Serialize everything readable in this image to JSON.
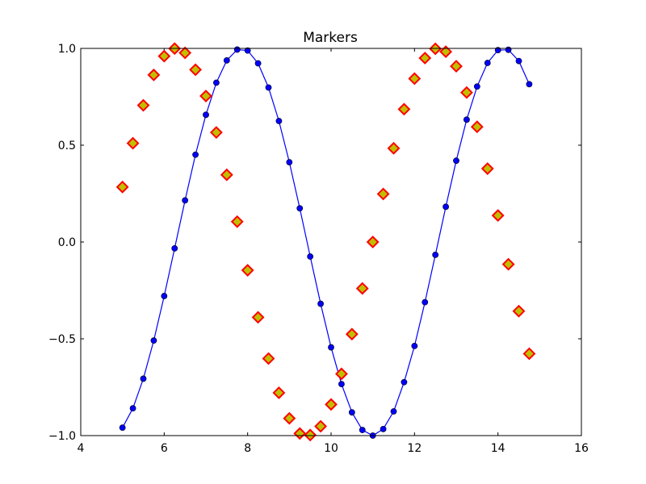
{
  "chart_data": {
    "type": "line",
    "title": "Markers",
    "xlabel": "",
    "ylabel": "",
    "xlim": [
      4,
      16
    ],
    "ylim": [
      -1.0,
      1.0
    ],
    "xticks": [
      4,
      6,
      8,
      10,
      12,
      14,
      16
    ],
    "xtick_labels": [
      "4",
      "6",
      "8",
      "10",
      "12",
      "14",
      "16"
    ],
    "yticks": [
      -1.0,
      -0.5,
      0.0,
      0.5,
      1.0
    ],
    "ytick_labels": [
      "−1.0",
      "−0.5",
      "0.0",
      "0.5",
      "1.0"
    ],
    "grid": false,
    "legend": "none",
    "series": [
      {
        "style": "line-with-circle-markers",
        "color": "#0000ff",
        "marker_face": "#0000ff",
        "x": [
          5.0,
          5.25,
          5.5,
          5.75,
          6.0,
          6.25,
          6.5,
          6.75,
          7.0,
          7.25,
          7.5,
          7.75,
          8.0,
          8.25,
          8.5,
          8.75,
          9.0,
          9.25,
          9.5,
          9.75,
          10.0,
          10.25,
          10.5,
          10.75,
          11.0,
          11.25,
          11.5,
          11.75,
          12.0,
          12.25,
          12.5,
          12.75,
          13.0,
          13.25,
          13.5,
          13.75,
          14.0,
          14.25,
          14.5,
          14.75
        ],
        "y": [
          -0.959,
          -0.859,
          -0.706,
          -0.509,
          -0.279,
          -0.033,
          0.215,
          0.451,
          0.657,
          0.823,
          0.938,
          0.994,
          0.989,
          0.923,
          0.798,
          0.625,
          0.412,
          0.174,
          -0.075,
          -0.319,
          -0.544,
          -0.734,
          -0.88,
          -0.971,
          -1.0,
          -0.966,
          -0.875,
          -0.724,
          -0.537,
          -0.311,
          -0.066,
          0.182,
          0.42,
          0.632,
          0.803,
          0.925,
          0.991,
          0.993,
          0.935,
          0.815
        ]
      },
      {
        "style": "diamond-markers",
        "color": "#ff0000",
        "marker_face": "#bfbf00",
        "x": [
          5.0,
          5.25,
          5.5,
          5.75,
          6.0,
          6.25,
          6.5,
          6.75,
          7.0,
          7.25,
          7.5,
          7.75,
          8.0,
          8.25,
          8.5,
          8.75,
          9.0,
          9.25,
          9.5,
          9.75,
          10.0,
          10.25,
          10.5,
          10.75,
          11.0,
          11.25,
          11.5,
          11.75,
          12.0,
          12.25,
          12.5,
          12.75,
          13.0,
          13.25,
          13.5,
          13.75,
          14.0,
          14.25,
          14.5,
          14.75
        ],
        "y": [
          0.284,
          0.51,
          0.706,
          0.863,
          0.96,
          0.999,
          0.977,
          0.89,
          0.754,
          0.566,
          0.347,
          0.105,
          -0.146,
          -0.389,
          -0.602,
          -0.779,
          -0.911,
          -0.989,
          -0.997,
          -0.952,
          -0.839,
          -0.681,
          -0.476,
          -0.24,
          0.0,
          0.248,
          0.484,
          0.686,
          0.844,
          0.95,
          0.998,
          0.983,
          0.908,
          0.772,
          0.595,
          0.379,
          0.137,
          -0.115,
          -0.357,
          -0.577
        ]
      }
    ]
  }
}
